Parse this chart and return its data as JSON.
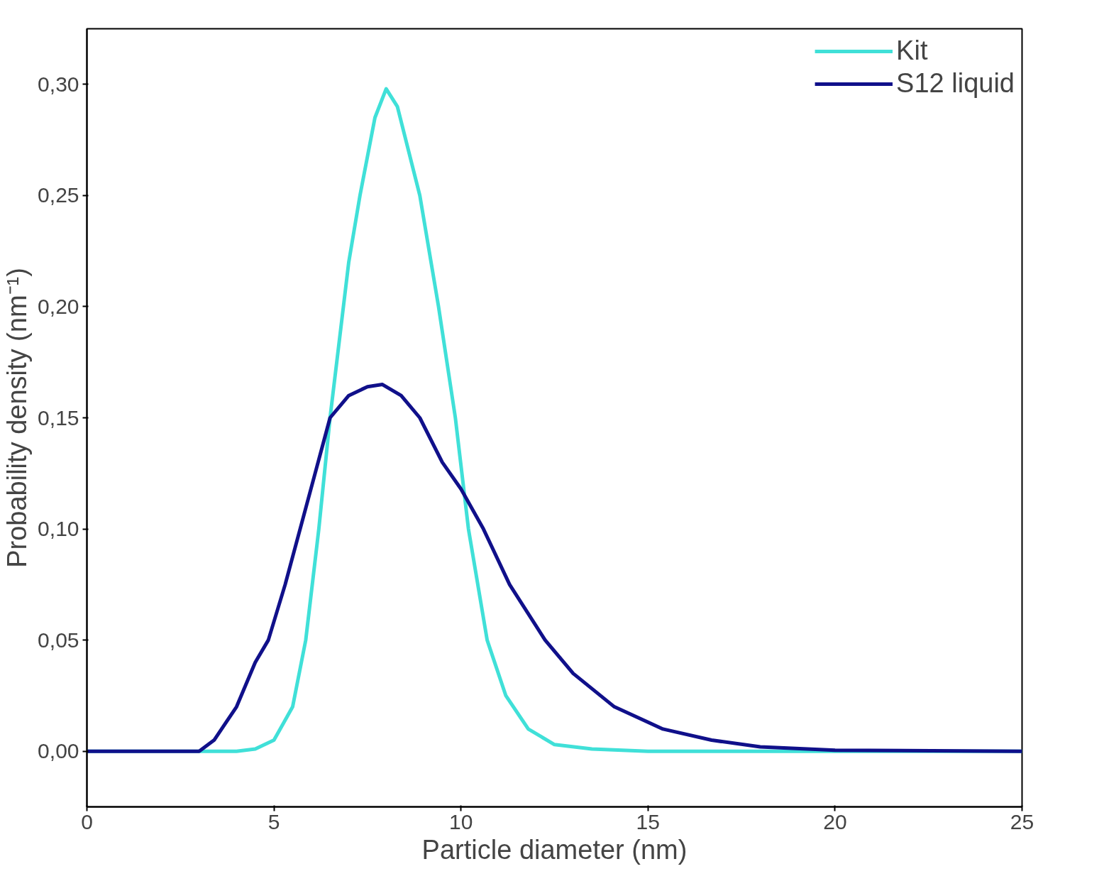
{
  "chart_data": {
    "type": "line",
    "xlabel": "Particle diameter (nm)",
    "ylabel": "Probability density (nm⁻¹)",
    "xlim": [
      0,
      25
    ],
    "xticks": [
      0,
      5,
      10,
      15,
      20,
      25
    ],
    "ylim": [
      -0.025,
      0.325
    ],
    "yticks": [
      {
        "value": 0,
        "label": "0,00"
      },
      {
        "value": 0.05,
        "label": "0,05"
      },
      {
        "value": 0.1,
        "label": "0,10"
      },
      {
        "value": 0.15,
        "label": "0,15"
      },
      {
        "value": 0.2,
        "label": "0,20"
      },
      {
        "value": 0.25,
        "label": "0,25"
      },
      {
        "value": 0.3,
        "label": "0,30"
      }
    ],
    "grid": false,
    "legend": "top right",
    "marker": "none",
    "line_style": "solid",
    "series": [
      {
        "name": "Kit",
        "color": "#40e0d8",
        "x": [
          0,
          4,
          4.5,
          5,
          5.5,
          5.85,
          6.2,
          6.5,
          7,
          7.3,
          7.7,
          8,
          8.3,
          8.9,
          9.4,
          9.85,
          10.2,
          10.7,
          11.2,
          11.8,
          12.5,
          13.5,
          15,
          25
        ],
        "values": [
          0,
          0,
          0.001,
          0.005,
          0.02,
          0.05,
          0.1,
          0.15,
          0.22,
          0.25,
          0.285,
          0.298,
          0.29,
          0.25,
          0.2,
          0.15,
          0.1,
          0.05,
          0.025,
          0.01,
          0.003,
          0.001,
          0,
          0
        ]
      },
      {
        "name": "S12 liquid",
        "color": "#10108a",
        "x": [
          0,
          3,
          3.4,
          4,
          4.5,
          4.85,
          5.3,
          5.7,
          6.1,
          6.5,
          7,
          7.5,
          7.9,
          8.4,
          8.9,
          9.5,
          10,
          10.6,
          11.3,
          12.25,
          13,
          14.1,
          15.4,
          16.7,
          18,
          20,
          25
        ],
        "values": [
          0,
          0,
          0.005,
          0.02,
          0.04,
          0.05,
          0.075,
          0.1,
          0.125,
          0.15,
          0.16,
          0.164,
          0.165,
          0.16,
          0.15,
          0.13,
          0.118,
          0.1,
          0.075,
          0.05,
          0.035,
          0.02,
          0.01,
          0.005,
          0.002,
          0.0005,
          0
        ]
      }
    ]
  }
}
